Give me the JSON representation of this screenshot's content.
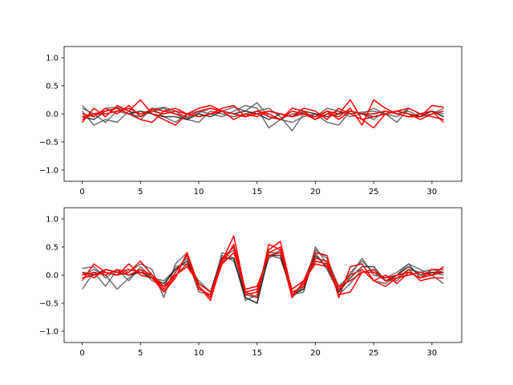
{
  "chart_data": [
    {
      "type": "line",
      "xlim": [
        -1.55,
        32.55
      ],
      "ylim": [
        -1.2,
        1.2
      ],
      "xticks": [
        0,
        5,
        10,
        15,
        20,
        25,
        30
      ],
      "yticks": [
        -1.0,
        -0.5,
        0.0,
        0.5,
        1.0
      ],
      "xtick_labels": [
        "0",
        "5",
        "10",
        "15",
        "20",
        "25",
        "30"
      ],
      "ytick_labels": [
        "−1.0",
        "−0.5",
        "0.0",
        "0.5",
        "1.0"
      ],
      "grid": false,
      "x": [
        0,
        1,
        2,
        3,
        4,
        5,
        6,
        7,
        8,
        9,
        10,
        11,
        12,
        13,
        14,
        15,
        16,
        17,
        18,
        19,
        20,
        21,
        22,
        23,
        24,
        25,
        26,
        27,
        28,
        29,
        30,
        31
      ],
      "series": [
        {
          "color": "#555555",
          "values": [
            0.15,
            -0.05,
            0.1,
            0.12,
            0.05,
            0.0,
            0.08,
            0.12,
            0.05,
            -0.08,
            0.02,
            0.1,
            0.05,
            0.12,
            0.05,
            0.2,
            -0.05,
            -0.1,
            0.0,
            0.02,
            -0.05,
            0.1,
            0.05,
            0.0,
            0.03,
            0.05,
            0.0,
            -0.05,
            0.1,
            0.0,
            0.05,
            0.0
          ]
        },
        {
          "color": "#555555",
          "values": [
            0.05,
            -0.2,
            -0.1,
            -0.15,
            0.05,
            -0.1,
            0.1,
            -0.05,
            -0.15,
            0.0,
            0.05,
            0.0,
            -0.05,
            0.05,
            0.15,
            0.1,
            -0.25,
            -0.1,
            -0.15,
            -0.05,
            0.0,
            -0.15,
            -0.2,
            0.05,
            0.0,
            0.1,
            0.0,
            -0.15,
            0.1,
            0.0,
            0.05,
            -0.05
          ]
        },
        {
          "color": "#555555",
          "values": [
            0.1,
            0.0,
            -0.15,
            0.05,
            0.0,
            -0.05,
            0.05,
            0.1,
            0.0,
            -0.1,
            -0.15,
            0.05,
            0.0,
            -0.05,
            0.0,
            0.05,
            0.1,
            -0.05,
            -0.3,
            0.0,
            -0.1,
            0.0,
            0.05,
            -0.05,
            0.0,
            -0.1,
            0.05,
            0.0,
            0.05,
            -0.05,
            0.0,
            0.1
          ]
        },
        {
          "color": "#1a1a1a",
          "values": [
            -0.05,
            -0.1,
            0.05,
            0.1,
            0.0,
            0.05,
            0.0,
            -0.05,
            -0.05,
            -0.1,
            0.0,
            -0.05,
            0.05,
            0.0,
            0.05,
            0.0,
            -0.1,
            0.0,
            -0.05,
            0.05,
            0.0,
            -0.05,
            0.0,
            0.05,
            0.0,
            -0.05,
            0.0,
            0.05,
            0.0,
            -0.05,
            0.05,
            -0.05
          ]
        },
        {
          "color": "#ff0000",
          "values": [
            -0.15,
            0.1,
            -0.05,
            0.15,
            0.05,
            0.25,
            0.0,
            -0.1,
            -0.2,
            0.0,
            0.1,
            0.15,
            0.05,
            0.0,
            -0.05,
            0.05,
            0.0,
            -0.1,
            0.1,
            0.05,
            -0.1,
            0.0,
            -0.05,
            0.1,
            -0.2,
            0.25,
            0.1,
            0.0,
            -0.05,
            -0.05,
            0.15,
            0.12
          ]
        },
        {
          "color": "#ff0000",
          "values": [
            0.0,
            -0.05,
            0.1,
            0.0,
            0.15,
            -0.05,
            0.1,
            0.05,
            0.0,
            -0.05,
            0.05,
            0.1,
            0.05,
            -0.1,
            0.0,
            -0.05,
            0.05,
            0.0,
            -0.05,
            0.1,
            0.05,
            -0.1,
            0.1,
            0.0,
            -0.1,
            -0.05,
            0.0,
            0.05,
            0.0,
            -0.1,
            0.0,
            0.05
          ]
        },
        {
          "color": "#ff0000",
          "values": [
            -0.05,
            0.0,
            0.05,
            0.1,
            0.0,
            -0.1,
            -0.15,
            0.05,
            0.1,
            0.0,
            -0.05,
            0.0,
            0.1,
            0.15,
            -0.05,
            0.05,
            -0.05,
            -0.1,
            0.05,
            0.0,
            -0.1,
            0.05,
            0.0,
            0.25,
            -0.1,
            -0.25,
            0.0,
            0.05,
            0.1,
            0.0,
            -0.05,
            -0.1
          ]
        },
        {
          "color": "#ff0000",
          "values": [
            -0.1,
            0.0,
            0.0,
            0.05,
            0.1,
            0.0,
            0.05,
            0.0,
            0.05,
            0.0,
            -0.05,
            0.0,
            0.05,
            0.0,
            -0.05,
            0.0,
            0.05,
            0.0,
            -0.05,
            0.0,
            -0.05,
            0.05,
            -0.1,
            0.05,
            0.0,
            0.0,
            0.05,
            0.0,
            -0.05,
            0.0,
            0.05,
            -0.15
          ]
        }
      ]
    },
    {
      "type": "line",
      "xlim": [
        -1.55,
        32.55
      ],
      "ylim": [
        -1.2,
        1.2
      ],
      "xticks": [
        0,
        5,
        10,
        15,
        20,
        25,
        30
      ],
      "yticks": [
        -1.0,
        -0.5,
        0.0,
        0.5,
        1.0
      ],
      "xtick_labels": [
        "0",
        "5",
        "10",
        "15",
        "20",
        "25",
        "30"
      ],
      "ytick_labels": [
        "−1.0",
        "−0.5",
        "0.0",
        "0.5",
        "1.0"
      ],
      "grid": false,
      "x": [
        0,
        1,
        2,
        3,
        4,
        5,
        6,
        7,
        8,
        9,
        10,
        11,
        12,
        13,
        14,
        15,
        16,
        17,
        18,
        19,
        20,
        21,
        22,
        23,
        24,
        25,
        26,
        27,
        28,
        29,
        30,
        31
      ],
      "series": [
        {
          "color": "#555555",
          "values": [
            0.12,
            0.15,
            -0.05,
            0.1,
            0.05,
            0.2,
            0.1,
            -0.4,
            0.2,
            0.4,
            -0.2,
            -0.4,
            0.3,
            0.45,
            -0.4,
            -0.5,
            0.4,
            0.4,
            -0.4,
            -0.2,
            0.45,
            0.3,
            -0.2,
            0.0,
            0.3,
            0.0,
            -0.05,
            0.05,
            0.2,
            -0.05,
            0.05,
            0.0
          ]
        },
        {
          "color": "#555555",
          "values": [
            -0.25,
            0.05,
            -0.2,
            0.1,
            -0.1,
            0.15,
            -0.05,
            -0.1,
            0.1,
            0.3,
            -0.3,
            -0.35,
            0.4,
            0.3,
            -0.45,
            -0.35,
            0.3,
            0.45,
            -0.35,
            -0.3,
            0.5,
            0.2,
            -0.35,
            -0.15,
            0.1,
            -0.1,
            -0.15,
            0.0,
            0.2,
            0.1,
            0.0,
            -0.15
          ]
        },
        {
          "color": "#555555",
          "values": [
            0.0,
            0.1,
            0.0,
            -0.25,
            -0.05,
            0.1,
            -0.1,
            -0.2,
            0.15,
            0.2,
            -0.1,
            -0.3,
            0.35,
            0.25,
            -0.35,
            -0.4,
            0.35,
            0.3,
            -0.3,
            -0.25,
            0.4,
            0.1,
            -0.3,
            0.05,
            0.25,
            0.05,
            -0.1,
            -0.1,
            0.1,
            0.05,
            0.1,
            0.05
          ]
        },
        {
          "color": "#1a1a1a",
          "values": [
            0.05,
            0.0,
            0.1,
            0.05,
            0.0,
            0.05,
            -0.05,
            -0.15,
            0.1,
            0.25,
            -0.15,
            -0.3,
            0.3,
            0.3,
            -0.4,
            -0.5,
            0.35,
            0.35,
            -0.35,
            -0.25,
            0.35,
            0.15,
            -0.3,
            -0.05,
            0.15,
            0.15,
            -0.1,
            0.0,
            0.15,
            0.0,
            0.05,
            0.05
          ]
        },
        {
          "color": "#ff0000",
          "values": [
            -0.1,
            0.2,
            0.05,
            0.0,
            0.2,
            0.0,
            -0.05,
            -0.3,
            -0.05,
            0.4,
            -0.2,
            -0.45,
            0.25,
            0.7,
            -0.3,
            -0.4,
            0.55,
            0.45,
            -0.4,
            -0.1,
            0.4,
            0.35,
            -0.4,
            0.15,
            0.2,
            -0.1,
            0.0,
            -0.15,
            0.05,
            -0.05,
            0.1,
            0.1
          ]
        },
        {
          "color": "#ff0000",
          "values": [
            0.05,
            -0.05,
            0.1,
            0.05,
            0.1,
            0.05,
            0.0,
            -0.25,
            0.05,
            0.35,
            -0.25,
            -0.35,
            0.3,
            0.5,
            -0.35,
            -0.3,
            0.45,
            0.6,
            -0.3,
            -0.2,
            0.3,
            0.25,
            -0.25,
            0.0,
            0.1,
            -0.1,
            -0.2,
            -0.05,
            0.0,
            0.05,
            0.0,
            0.15
          ]
        },
        {
          "color": "#ff0000",
          "values": [
            -0.05,
            0.0,
            0.05,
            0.0,
            0.05,
            0.25,
            0.0,
            -0.3,
            0.0,
            0.2,
            -0.2,
            -0.4,
            0.2,
            0.55,
            -0.3,
            -0.25,
            0.4,
            0.5,
            -0.35,
            -0.15,
            0.25,
            0.2,
            -0.35,
            -0.3,
            0.05,
            0.1,
            -0.1,
            -0.05,
            0.1,
            -0.1,
            -0.05,
            -0.05
          ]
        },
        {
          "color": "#ff0000",
          "values": [
            0.0,
            0.05,
            0.0,
            0.1,
            0.0,
            0.1,
            0.0,
            -0.2,
            0.0,
            0.15,
            -0.15,
            -0.3,
            0.2,
            0.4,
            -0.25,
            -0.2,
            0.35,
            0.4,
            -0.25,
            -0.1,
            0.2,
            0.15,
            -0.2,
            -0.1,
            0.05,
            0.05,
            -0.05,
            0.0,
            0.05,
            -0.05,
            0.0,
            0.05
          ]
        }
      ]
    }
  ]
}
